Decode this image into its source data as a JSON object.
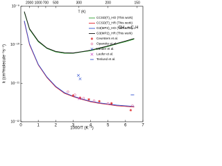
{
  "chart_data": {
    "type": "line",
    "annotation": "CH₄ + C₂H",
    "x_label": "1000/T (K⁻¹)",
    "y_label": "k (cm³molecule⁻¹s⁻¹)",
    "x2_label": "T (K)",
    "xlim": [
      0,
      7
    ],
    "xticks": [
      0,
      1,
      2,
      3,
      4,
      5,
      6,
      7
    ],
    "x2ticks": [
      2000,
      1000,
      700,
      500,
      300,
      200,
      150
    ],
    "log_y": true,
    "ylim": [
      1e-12,
      1e-09
    ],
    "yticks": [
      {
        "value": 1e-12,
        "label": "10⁻¹²"
      },
      {
        "value": 1e-11,
        "label": "10⁻¹¹"
      },
      {
        "value": 1e-10,
        "label": "10⁻¹⁰"
      },
      {
        "value": 1e-09,
        "label": "10⁻⁹"
      }
    ],
    "legend": "upper right",
    "series": [
      {
        "name": "CCSD(T)_HO (This work)",
        "color": "#2e9e2e",
        "kind": "line",
        "x": [
          0.2,
          0.5,
          1,
          1.5,
          2,
          2.5,
          3,
          3.5,
          4,
          4.5,
          5,
          5.5,
          6,
          6.5
        ],
        "values": [
          7e-10,
          2.5e-10,
          1.2e-10,
          8e-11,
          6.5e-11,
          6e-11,
          6e-11,
          6.5e-11,
          7e-11,
          8e-11,
          9e-11,
          1.05e-10,
          1.2e-10,
          1.4e-10
        ]
      },
      {
        "name": "CCSD(T)_HR (This work)",
        "color": "#e0202a",
        "kind": "line",
        "x": [
          0.2,
          0.5,
          1,
          1.5,
          2,
          2.5,
          3,
          3.5,
          4,
          4.5,
          5,
          5.5,
          6,
          6.5
        ],
        "values": [
          4e-10,
          1e-10,
          3e-11,
          1.4e-11,
          8e-12,
          5.5e-12,
          4.5e-12,
          3.8e-12,
          3.3e-12,
          3e-12,
          2.8e-12,
          2.6e-12,
          2.5e-12,
          2.4e-12
        ]
      },
      {
        "name": "G3(MP2)_HO (This work)",
        "color": "#3050d0",
        "kind": "line",
        "x": [
          0.2,
          0.5,
          1,
          1.5,
          2,
          2.5,
          3,
          3.5,
          4,
          4.5,
          5,
          5.5,
          6,
          6.5
        ],
        "values": [
          4.2e-10,
          1.05e-10,
          3.1e-11,
          1.45e-11,
          8.3e-12,
          5.7e-12,
          4.6e-12,
          3.9e-12,
          3.4e-12,
          3.1e-12,
          2.9e-12,
          2.7e-12,
          2.6e-12,
          2.5e-12
        ]
      },
      {
        "name": "G3(MP2)_HR (This work)",
        "color": "#111111",
        "kind": "line",
        "x": [
          0.2,
          0.5,
          1,
          1.5,
          2,
          2.5,
          3,
          3.5,
          4,
          4.5,
          5,
          5.5,
          6,
          6.5
        ],
        "values": [
          7.3e-10,
          2.6e-10,
          1.25e-10,
          8.2e-11,
          6.7e-11,
          6.2e-11,
          6.1e-11,
          6.6e-11,
          7.2e-11,
          8.2e-11,
          9.3e-11,
          1.08e-10,
          1.25e-10,
          1.45e-10
        ]
      },
      {
        "name": "Ceursters et al.",
        "color": "#e03030",
        "kind": "star",
        "x": [
          3.0,
          3.4,
          3.9,
          4.5,
          5.2,
          6.3
        ],
        "values": [
          4.8e-12,
          4.2e-12,
          3.8e-12,
          3.4e-12,
          3e-12,
          2e-12
        ]
      },
      {
        "name": "Opansky et al.",
        "color": "#e070a0",
        "kind": "circle",
        "x": [
          2.7,
          3.1,
          3.6,
          4.2,
          5.0,
          6.4
        ],
        "values": [
          6e-12,
          5e-12,
          4.1e-12,
          3.5e-12,
          3e-12,
          2.6e-12
        ]
      },
      {
        "name": "Lander et al.",
        "color": "#3050d0",
        "kind": "x",
        "x": [
          3.3,
          3.4
        ],
        "values": [
          1.6e-11,
          1.3e-11
        ]
      },
      {
        "name": "Laufer et al.",
        "color": "#c030c0",
        "kind": "x",
        "x": [
          3.35
        ],
        "values": [
          4e-12
        ]
      },
      {
        "name": "Tenlund et al.",
        "color": "#3050d0",
        "kind": "dash",
        "x": [
          6.4
        ],
        "values": [
          5e-12
        ]
      }
    ]
  }
}
